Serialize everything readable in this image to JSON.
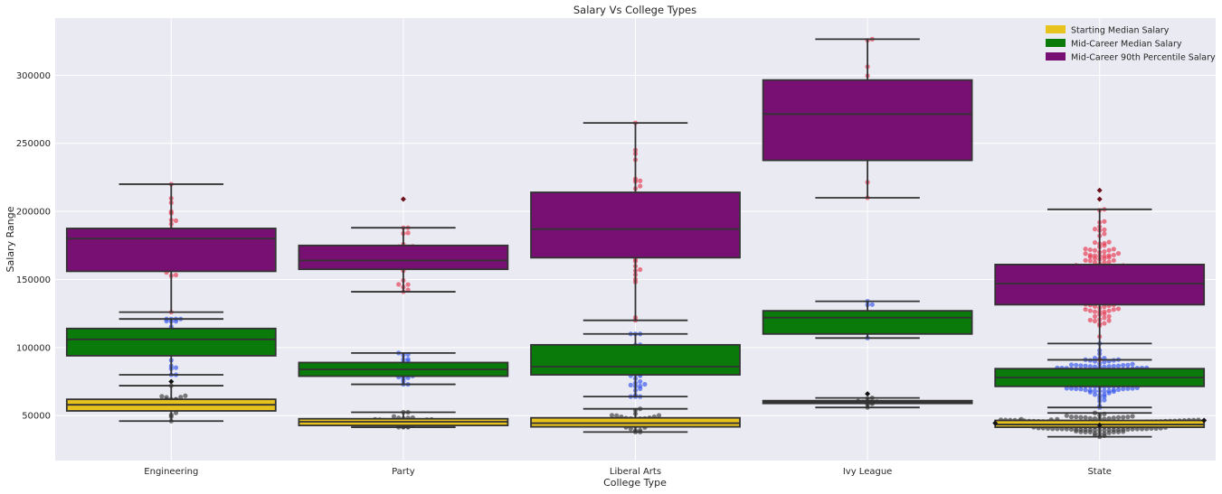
{
  "chart_data": {
    "type": "box",
    "title": "Salary Vs College Types",
    "xlabel": "College Type",
    "ylabel": "Salary Range",
    "categories": [
      "Engineering",
      "Party",
      "Liberal Arts",
      "Ivy League",
      "State"
    ],
    "y_ticks": [
      50000,
      100000,
      150000,
      200000,
      250000,
      300000
    ],
    "ylim": [
      17000,
      342000
    ],
    "grid": true,
    "legend_position": "top-right",
    "series": [
      {
        "name": "Starting Median Salary",
        "color": "#e8c31e",
        "boxes": [
          {
            "whisker_low": 46000,
            "q1": 53500,
            "median": 58000,
            "q3": 62000,
            "whisker_high": 72000,
            "outliers": [
              75000
            ]
          },
          {
            "whisker_low": 41500,
            "q1": 42800,
            "median": 45500,
            "q3": 47700,
            "whisker_high": 52500,
            "outliers": []
          },
          {
            "whisker_low": 38000,
            "q1": 41800,
            "median": 44500,
            "q3": 48400,
            "whisker_high": 55000,
            "outliers": []
          },
          {
            "whisker_low": 56000,
            "q1": 59000,
            "median": 60000,
            "q3": 61000,
            "whisker_high": 63000,
            "outliers": [
              66000
            ]
          },
          {
            "whisker_low": 34500,
            "q1": 41500,
            "median": 43500,
            "q3": 46500,
            "whisker_high": 52000,
            "outliers": [
              43000,
              44500,
              46500
            ]
          }
        ]
      },
      {
        "name": "Mid-Career Median Salary",
        "color": "#0a7a0a",
        "boxes": [
          {
            "whisker_low": 80000,
            "q1": 94000,
            "median": 106000,
            "q3": 114000,
            "whisker_high": 121000,
            "outliers": []
          },
          {
            "whisker_low": 73000,
            "q1": 79000,
            "median": 84000,
            "q3": 89000,
            "whisker_high": 96000,
            "outliers": []
          },
          {
            "whisker_low": 64000,
            "q1": 80000,
            "median": 86000,
            "q3": 102000,
            "whisker_high": 110000,
            "outliers": []
          },
          {
            "whisker_low": 107000,
            "q1": 110000,
            "median": 122000,
            "q3": 127000,
            "whisker_high": 134000,
            "outliers": []
          },
          {
            "whisker_low": 56000,
            "q1": 71500,
            "median": 78000,
            "q3": 84500,
            "whisker_high": 103000,
            "outliers": []
          }
        ]
      },
      {
        "name": "Mid-Career 90th Percentile Salary",
        "color": "#780f73",
        "boxes": [
          {
            "whisker_low": 126000,
            "q1": 156000,
            "median": 180000,
            "q3": 187500,
            "whisker_high": 220000,
            "outliers": []
          },
          {
            "whisker_low": 141000,
            "q1": 157500,
            "median": 164000,
            "q3": 175000,
            "whisker_high": 188000,
            "outliers": [
              209000
            ]
          },
          {
            "whisker_low": 120000,
            "q1": 166000,
            "median": 187000,
            "q3": 214000,
            "whisker_high": 265000,
            "outliers": []
          },
          {
            "whisker_low": 210000,
            "q1": 237500,
            "median": 271500,
            "q3": 296500,
            "whisker_high": 326500,
            "outliers": []
          },
          {
            "whisker_low": 91000,
            "q1": 131500,
            "median": 147000,
            "q3": 161000,
            "whisker_high": 201500,
            "outliers": [
              209000,
              215500
            ]
          }
        ]
      }
    ]
  }
}
